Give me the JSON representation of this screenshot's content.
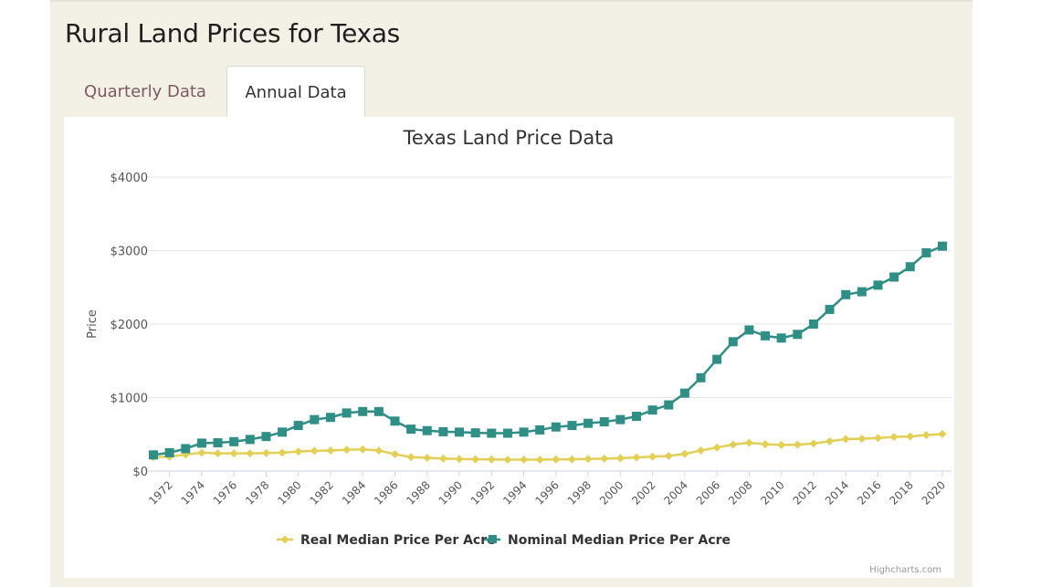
{
  "page": {
    "title": "Rural Land Prices for Texas"
  },
  "tabs": [
    {
      "label": "Quarterly Data",
      "active": false
    },
    {
      "label": "Annual Data",
      "active": true
    }
  ],
  "credits": "Highcharts.com",
  "colors": {
    "real": "#e3cf55",
    "nominal": "#2f8f86",
    "tab_inactive_text": "#7d5a60",
    "panel_bg": "#f3f0e6"
  },
  "chart_data": {
    "type": "line",
    "title": "Texas Land Price Data",
    "xlabel": "",
    "ylabel": "Price",
    "ylim": [
      0,
      4000
    ],
    "yticks": [
      0,
      1000,
      2000,
      3000,
      4000
    ],
    "ytick_labels": [
      "$0",
      "$1000",
      "$2000",
      "$3000",
      "$4000"
    ],
    "grid": true,
    "legend_position": "bottom-center",
    "x": [
      1971,
      1972,
      1973,
      1974,
      1975,
      1976,
      1977,
      1978,
      1979,
      1980,
      1981,
      1982,
      1983,
      1984,
      1985,
      1986,
      1987,
      1988,
      1989,
      1990,
      1991,
      1992,
      1993,
      1994,
      1995,
      1996,
      1997,
      1998,
      1999,
      2000,
      2001,
      2002,
      2003,
      2004,
      2005,
      2006,
      2007,
      2008,
      2009,
      2010,
      2011,
      2012,
      2013,
      2014,
      2015,
      2016,
      2017,
      2018,
      2019,
      2020
    ],
    "xtick_labels": [
      "1972",
      "1974",
      "1976",
      "1978",
      "1980",
      "1982",
      "1984",
      "1986",
      "1988",
      "1990",
      "1992",
      "1994",
      "1996",
      "1998",
      "2000",
      "2002",
      "2004",
      "2006",
      "2008",
      "2010",
      "2012",
      "2014",
      "2016",
      "2018",
      "2020"
    ],
    "series": [
      {
        "name": "Real Median Price Per Acre",
        "color": "#e3cf55",
        "marker": "diamond",
        "values": [
          190,
          195,
          225,
          250,
          240,
          240,
          240,
          245,
          250,
          265,
          275,
          280,
          290,
          295,
          280,
          230,
          190,
          180,
          170,
          165,
          160,
          158,
          155,
          155,
          155,
          158,
          160,
          165,
          170,
          175,
          185,
          195,
          205,
          235,
          280,
          320,
          360,
          385,
          365,
          355,
          358,
          375,
          405,
          435,
          440,
          450,
          465,
          470,
          490,
          505
        ]
      },
      {
        "name": "Nominal Median Price Per Acre",
        "color": "#2f8f86",
        "marker": "square",
        "values": [
          220,
          250,
          305,
          380,
          385,
          400,
          430,
          470,
          530,
          620,
          700,
          730,
          790,
          810,
          810,
          680,
          570,
          550,
          535,
          530,
          520,
          515,
          515,
          530,
          560,
          600,
          620,
          650,
          670,
          700,
          745,
          830,
          900,
          1060,
          1270,
          1520,
          1760,
          1920,
          1840,
          1810,
          1860,
          2000,
          2200,
          2400,
          2440,
          2530,
          2640,
          2780,
          2970,
          3060
        ]
      }
    ]
  }
}
